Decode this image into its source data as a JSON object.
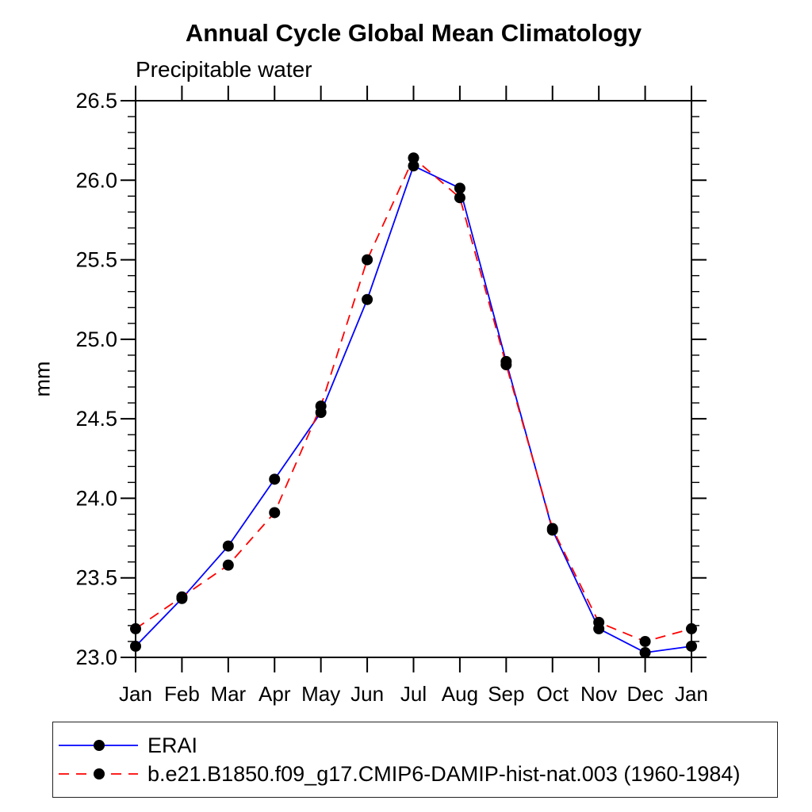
{
  "chart_data": {
    "type": "line",
    "title": "Annual Cycle Global Mean Climatology",
    "subtitle": "Precipitable water",
    "ylabel": "mm",
    "xlabel": "",
    "x_categories": [
      "Jan",
      "Feb",
      "Mar",
      "Apr",
      "May",
      "Jun",
      "Jul",
      "Aug",
      "Sep",
      "Oct",
      "Nov",
      "Dec",
      "Jan"
    ],
    "ylim": [
      23.0,
      26.5
    ],
    "ytick_step": 0.5,
    "ytick_minor_step": 0.1,
    "ytick_labels": [
      "23.0",
      "23.5",
      "24.0",
      "24.5",
      "25.0",
      "25.5",
      "26.0",
      "26.5"
    ],
    "grid": false,
    "legend_position": "bottom",
    "axis_color": "#000000",
    "marker_color": "#000000",
    "series": [
      {
        "name": "ERAI",
        "color": "#0000ff",
        "line_style": "solid",
        "marker": "circle",
        "values": [
          23.07,
          23.37,
          23.7,
          24.12,
          24.54,
          25.25,
          26.09,
          25.95,
          24.86,
          23.8,
          23.18,
          23.03,
          23.07
        ]
      },
      {
        "name": "b.e21.B1850.f09_g17.CMIP6-DAMIP-hist-nat.003 (1960-1984)",
        "color": "#ff0000",
        "line_style": "dashed",
        "marker": "circle",
        "values": [
          23.18,
          23.38,
          23.58,
          23.91,
          24.58,
          25.5,
          26.14,
          25.89,
          24.84,
          23.81,
          23.22,
          23.1,
          23.18
        ]
      }
    ]
  }
}
